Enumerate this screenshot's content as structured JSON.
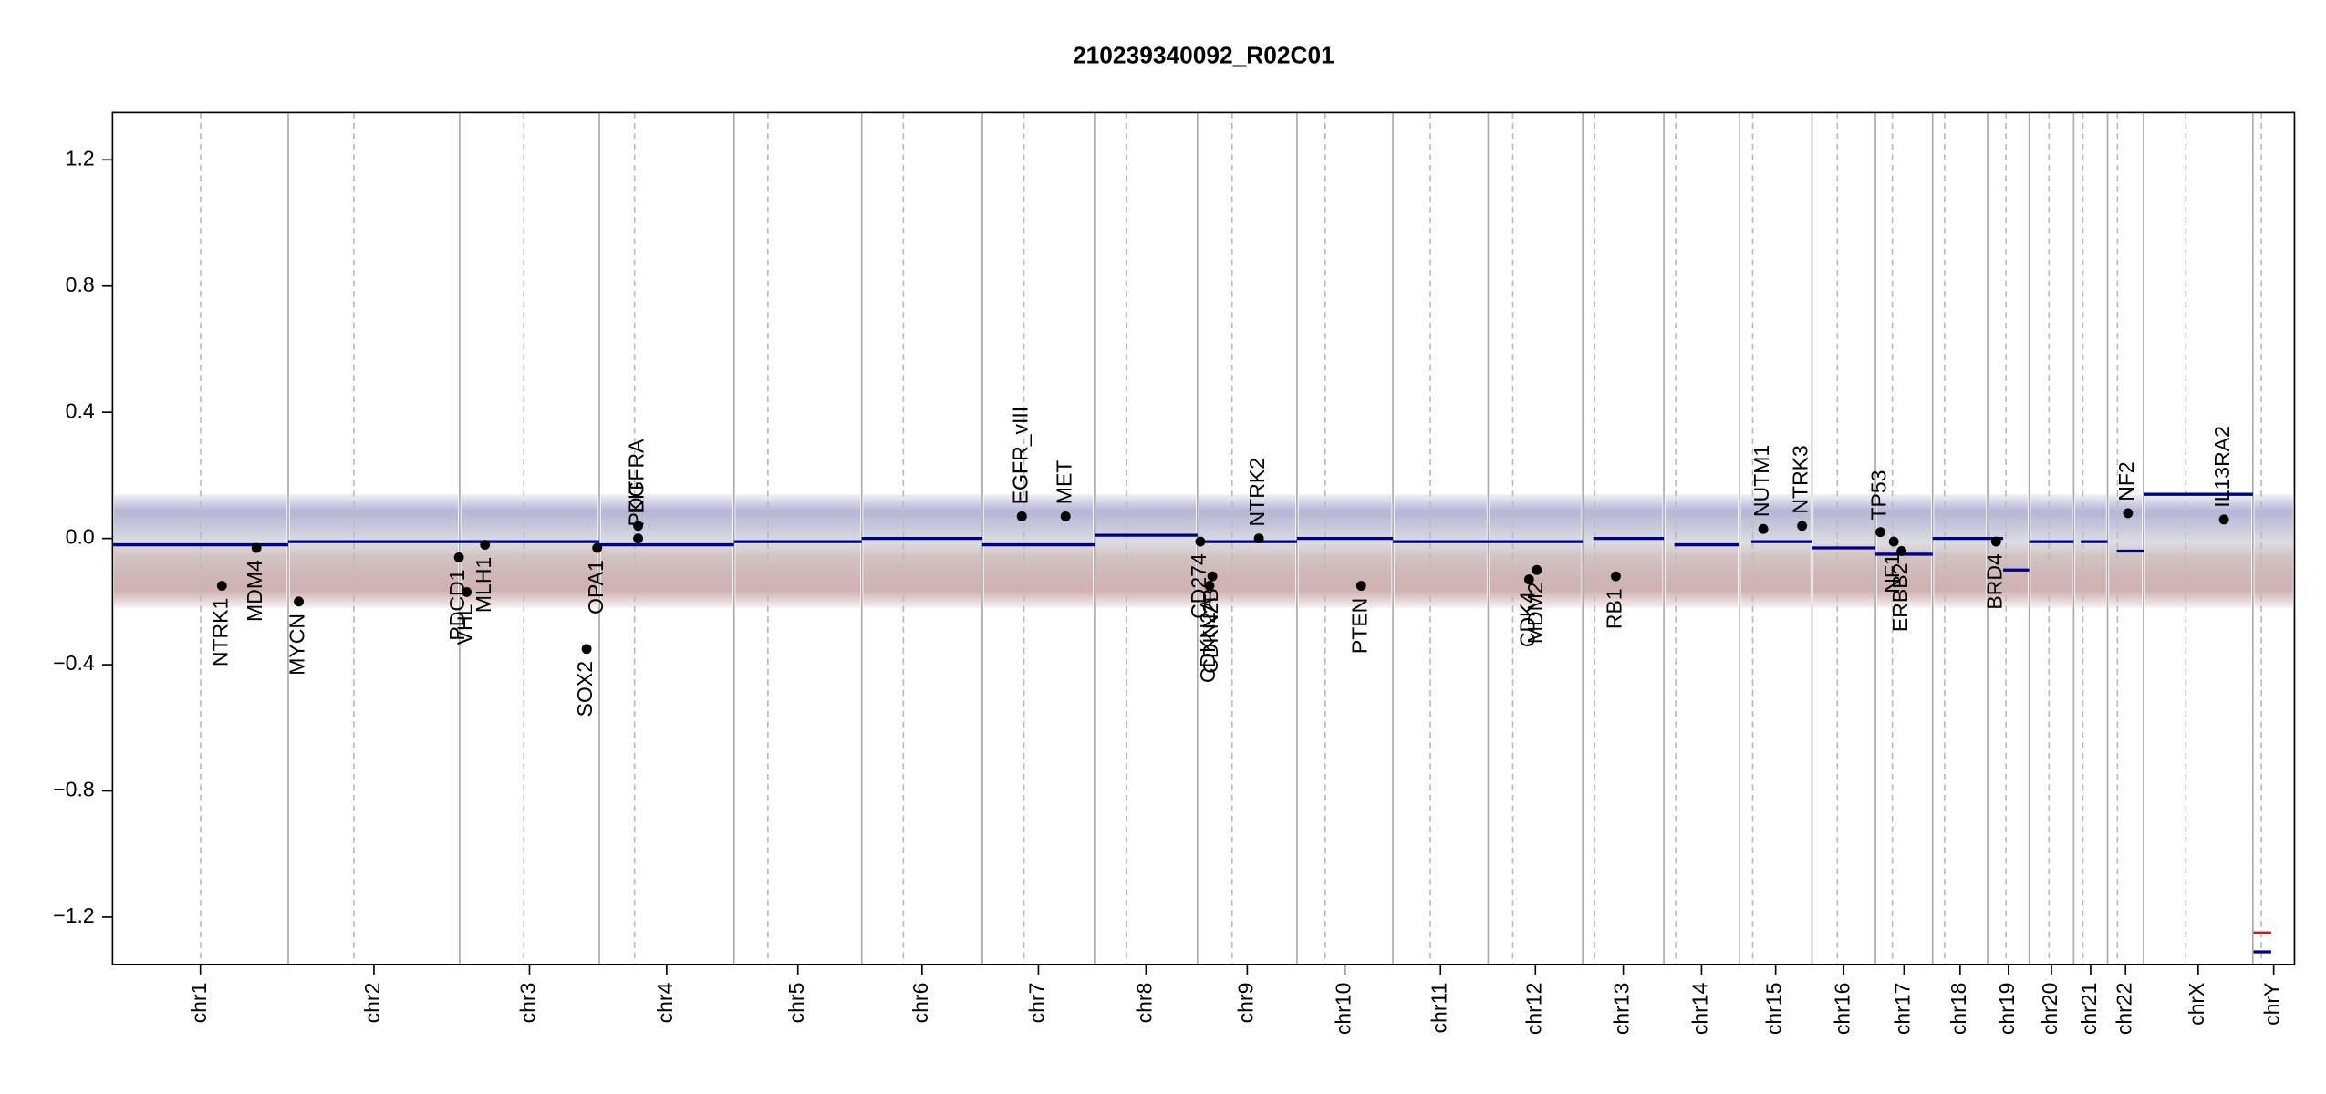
{
  "chart_data": {
    "type": "scatter",
    "title": "210239340092_R02C01",
    "xlim": [
      0,
      3093
    ],
    "ylim": [
      -1.35,
      1.35
    ],
    "yticks": [
      {
        "value": -1.2,
        "label": "−1.2"
      },
      {
        "value": -0.8,
        "label": "−0.8"
      },
      {
        "value": -0.4,
        "label": "−0.4"
      },
      {
        "value": 0,
        "label": "0.0"
      },
      0.4,
      0.8,
      1.2
    ],
    "chromosomes": [
      {
        "name": "chr1",
        "length": 249,
        "centromere": 125
      },
      {
        "name": "chr2",
        "length": 243,
        "centromere": 93
      },
      {
        "name": "chr3",
        "length": 198,
        "centromere": 91
      },
      {
        "name": "chr4",
        "length": 191,
        "centromere": 50
      },
      {
        "name": "chr5",
        "length": 181,
        "centromere": 48
      },
      {
        "name": "chr6",
        "length": 171,
        "centromere": 59
      },
      {
        "name": "chr7",
        "length": 159,
        "centromere": 59
      },
      {
        "name": "chr8",
        "length": 146,
        "centromere": 45
      },
      {
        "name": "chr9",
        "length": 141,
        "centromere": 49
      },
      {
        "name": "chr10",
        "length": 136,
        "centromere": 40
      },
      {
        "name": "chr11",
        "length": 135,
        "centromere": 53
      },
      {
        "name": "chr12",
        "length": 134,
        "centromere": 35
      },
      {
        "name": "chr13",
        "length": 115,
        "centromere": 17
      },
      {
        "name": "chr14",
        "length": 107,
        "centromere": 17
      },
      {
        "name": "chr15",
        "length": 103,
        "centromere": 19
      },
      {
        "name": "chr16",
        "length": 90,
        "centromere": 36
      },
      {
        "name": "chr17",
        "length": 81,
        "centromere": 24
      },
      {
        "name": "chr18",
        "length": 78,
        "centromere": 17
      },
      {
        "name": "chr19",
        "length": 59,
        "centromere": 26
      },
      {
        "name": "chr20",
        "length": 63,
        "centromere": 28
      },
      {
        "name": "chr21",
        "length": 48,
        "centromere": 13
      },
      {
        "name": "chr22",
        "length": 51,
        "centromere": 14
      },
      {
        "name": "chrX",
        "length": 155,
        "centromere": 60
      },
      {
        "name": "chrY",
        "length": 59,
        "centromere": 12
      }
    ],
    "genes": [
      {
        "name": "NTRK1",
        "x": 155,
        "y": -0.15
      },
      {
        "name": "MDM4",
        "x": 204,
        "y": -0.03
      },
      {
        "name": "MYCN",
        "x": 264,
        "y": -0.2
      },
      {
        "name": "PDCD1",
        "x": 491,
        "y": -0.06
      },
      {
        "name": "VHL",
        "x": 502,
        "y": -0.17
      },
      {
        "name": "MLH1",
        "x": 528,
        "y": -0.02
      },
      {
        "name": "SOX2",
        "x": 672,
        "y": -0.35
      },
      {
        "name": "OPA1",
        "x": 687,
        "y": -0.03
      },
      {
        "name": "KIT",
        "x": 745,
        "y": 0.04
      },
      {
        "name": "PDGFRA",
        "x": 745,
        "y": 0.0
      },
      {
        "name": "EGFR",
        "x": 1289,
        "y": 0.07
      },
      {
        "name": "EGFR_vIII",
        "x": 1289,
        "y": 0.07
      },
      {
        "name": "MET",
        "x": 1351,
        "y": 0.07
      },
      {
        "name": "CD274",
        "x": 1542,
        "y": -0.01
      },
      {
        "name": "CDKN2A",
        "x": 1555,
        "y": -0.15
      },
      {
        "name": "CDKN2B",
        "x": 1559,
        "y": -0.12
      },
      {
        "name": "NTRK2",
        "x": 1625,
        "y": 0.0
      },
      {
        "name": "PTEN",
        "x": 1770,
        "y": -0.15
      },
      {
        "name": "CDK4",
        "x": 2008,
        "y": -0.13
      },
      {
        "name": "MDM2",
        "x": 2019,
        "y": -0.1
      },
      {
        "name": "RB1",
        "x": 2131,
        "y": -0.12
      },
      {
        "name": "NUTM1",
        "x": 2340,
        "y": 0.03
      },
      {
        "name": "NTRK3",
        "x": 2395,
        "y": 0.04
      },
      {
        "name": "TP53",
        "x": 2506,
        "y": 0.02
      },
      {
        "name": "NF1",
        "x": 2525,
        "y": -0.01
      },
      {
        "name": "ERBB2",
        "x": 2536,
        "y": -0.04
      },
      {
        "name": "BRD4",
        "x": 2670,
        "y": -0.01
      },
      {
        "name": "NF2",
        "x": 2857,
        "y": 0.08
      },
      {
        "name": "IL13RA2",
        "x": 2993,
        "y": 0.06
      }
    ],
    "segments": [
      {
        "x": [
          0,
          249
        ],
        "y": -0.02,
        "color": "#00008b"
      },
      {
        "x": [
          249,
          492
        ],
        "y": -0.01,
        "color": "#00008b"
      },
      {
        "x": [
          492,
          690
        ],
        "y": -0.01,
        "color": "#00008b"
      },
      {
        "x": [
          690,
          881
        ],
        "y": -0.02,
        "color": "#00008b"
      },
      {
        "x": [
          881,
          1062
        ],
        "y": -0.01,
        "color": "#00008b"
      },
      {
        "x": [
          1062,
          1233
        ],
        "y": 0.0,
        "color": "#00008b"
      },
      {
        "x": [
          1233,
          1392
        ],
        "y": -0.02,
        "color": "#00008b"
      },
      {
        "x": [
          1392,
          1538
        ],
        "y": 0.01,
        "color": "#00008b"
      },
      {
        "x": [
          1538,
          1679
        ],
        "y": -0.01,
        "color": "#00008b"
      },
      {
        "x": [
          1679,
          1815
        ],
        "y": 0.0,
        "color": "#00008b"
      },
      {
        "x": [
          1815,
          1950
        ],
        "y": -0.01,
        "color": "#00008b"
      },
      {
        "x": [
          1950,
          2084
        ],
        "y": -0.01,
        "color": "#00008b"
      },
      {
        "x": [
          2099,
          2199
        ],
        "y": 0.0,
        "color": "#00008b"
      },
      {
        "x": [
          2214,
          2306
        ],
        "y": -0.02,
        "color": "#00008b"
      },
      {
        "x": [
          2323,
          2409
        ],
        "y": -0.01,
        "color": "#00008b"
      },
      {
        "x": [
          2409,
          2499
        ],
        "y": -0.03,
        "color": "#00008b"
      },
      {
        "x": [
          2499,
          2580
        ],
        "y": -0.05,
        "color": "#00008b"
      },
      {
        "x": [
          2580,
          2658
        ],
        "y": 0.0,
        "color": "#00008b"
      },
      {
        "x": [
          2658,
          2680
        ],
        "y": 0.0,
        "color": "#00008b"
      },
      {
        "x": [
          2680,
          2717
        ],
        "y": -0.1,
        "color": "#00008b"
      },
      {
        "x": [
          2717,
          2780
        ],
        "y": -0.01,
        "color": "#00008b"
      },
      {
        "x": [
          2790,
          2828
        ],
        "y": -0.01,
        "color": "#00008b"
      },
      {
        "x": [
          2841,
          2879
        ],
        "y": -0.04,
        "color": "#00008b"
      },
      {
        "x": [
          2879,
          3034
        ],
        "y": 0.14,
        "color": "#00008b"
      },
      {
        "x": [
          3035,
          3060
        ],
        "y": -1.31,
        "color": "#00008b"
      },
      {
        "x": [
          3035,
          3060
        ],
        "y": -1.25,
        "color": "#b22222"
      }
    ]
  }
}
